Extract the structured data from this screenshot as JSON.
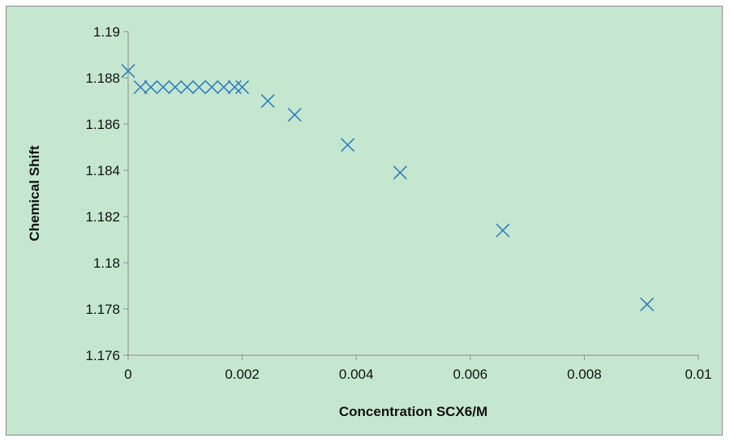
{
  "chart_data": {
    "type": "scatter",
    "title": "",
    "xlabel": "Concentration SCX6/M",
    "ylabel": "Chemical Shift",
    "xlim": [
      0,
      0.01
    ],
    "ylim": [
      1.176,
      1.19
    ],
    "x_ticks": [
      "0",
      "0.002",
      "0.004",
      "0.006",
      "0.008",
      "0.01"
    ],
    "y_ticks": [
      "1.176",
      "1.178",
      "1.18",
      "1.182",
      "1.184",
      "1.186",
      "1.188",
      "1.19"
    ],
    "grid": false,
    "legend": "none",
    "marker": "x",
    "colors": {
      "background": "#c6e7cf",
      "marker": "#2e7fbf",
      "axis": "#8c8c8c"
    },
    "series": [
      {
        "x": [
          0,
          0.000216,
          0.000398,
          0.000614,
          0.000824,
          0.001034,
          0.001244,
          0.001466,
          0.001676,
          0.001869,
          0.002,
          0.00245,
          0.00292,
          0.00385,
          0.00477,
          0.00657,
          0.0091
        ],
        "y": [
          1.1883,
          1.1876,
          1.1876,
          1.1876,
          1.1876,
          1.1876,
          1.1876,
          1.1876,
          1.1876,
          1.1876,
          1.1876,
          1.187,
          1.1864,
          1.1851,
          1.1839,
          1.1814,
          1.1782
        ]
      }
    ]
  }
}
